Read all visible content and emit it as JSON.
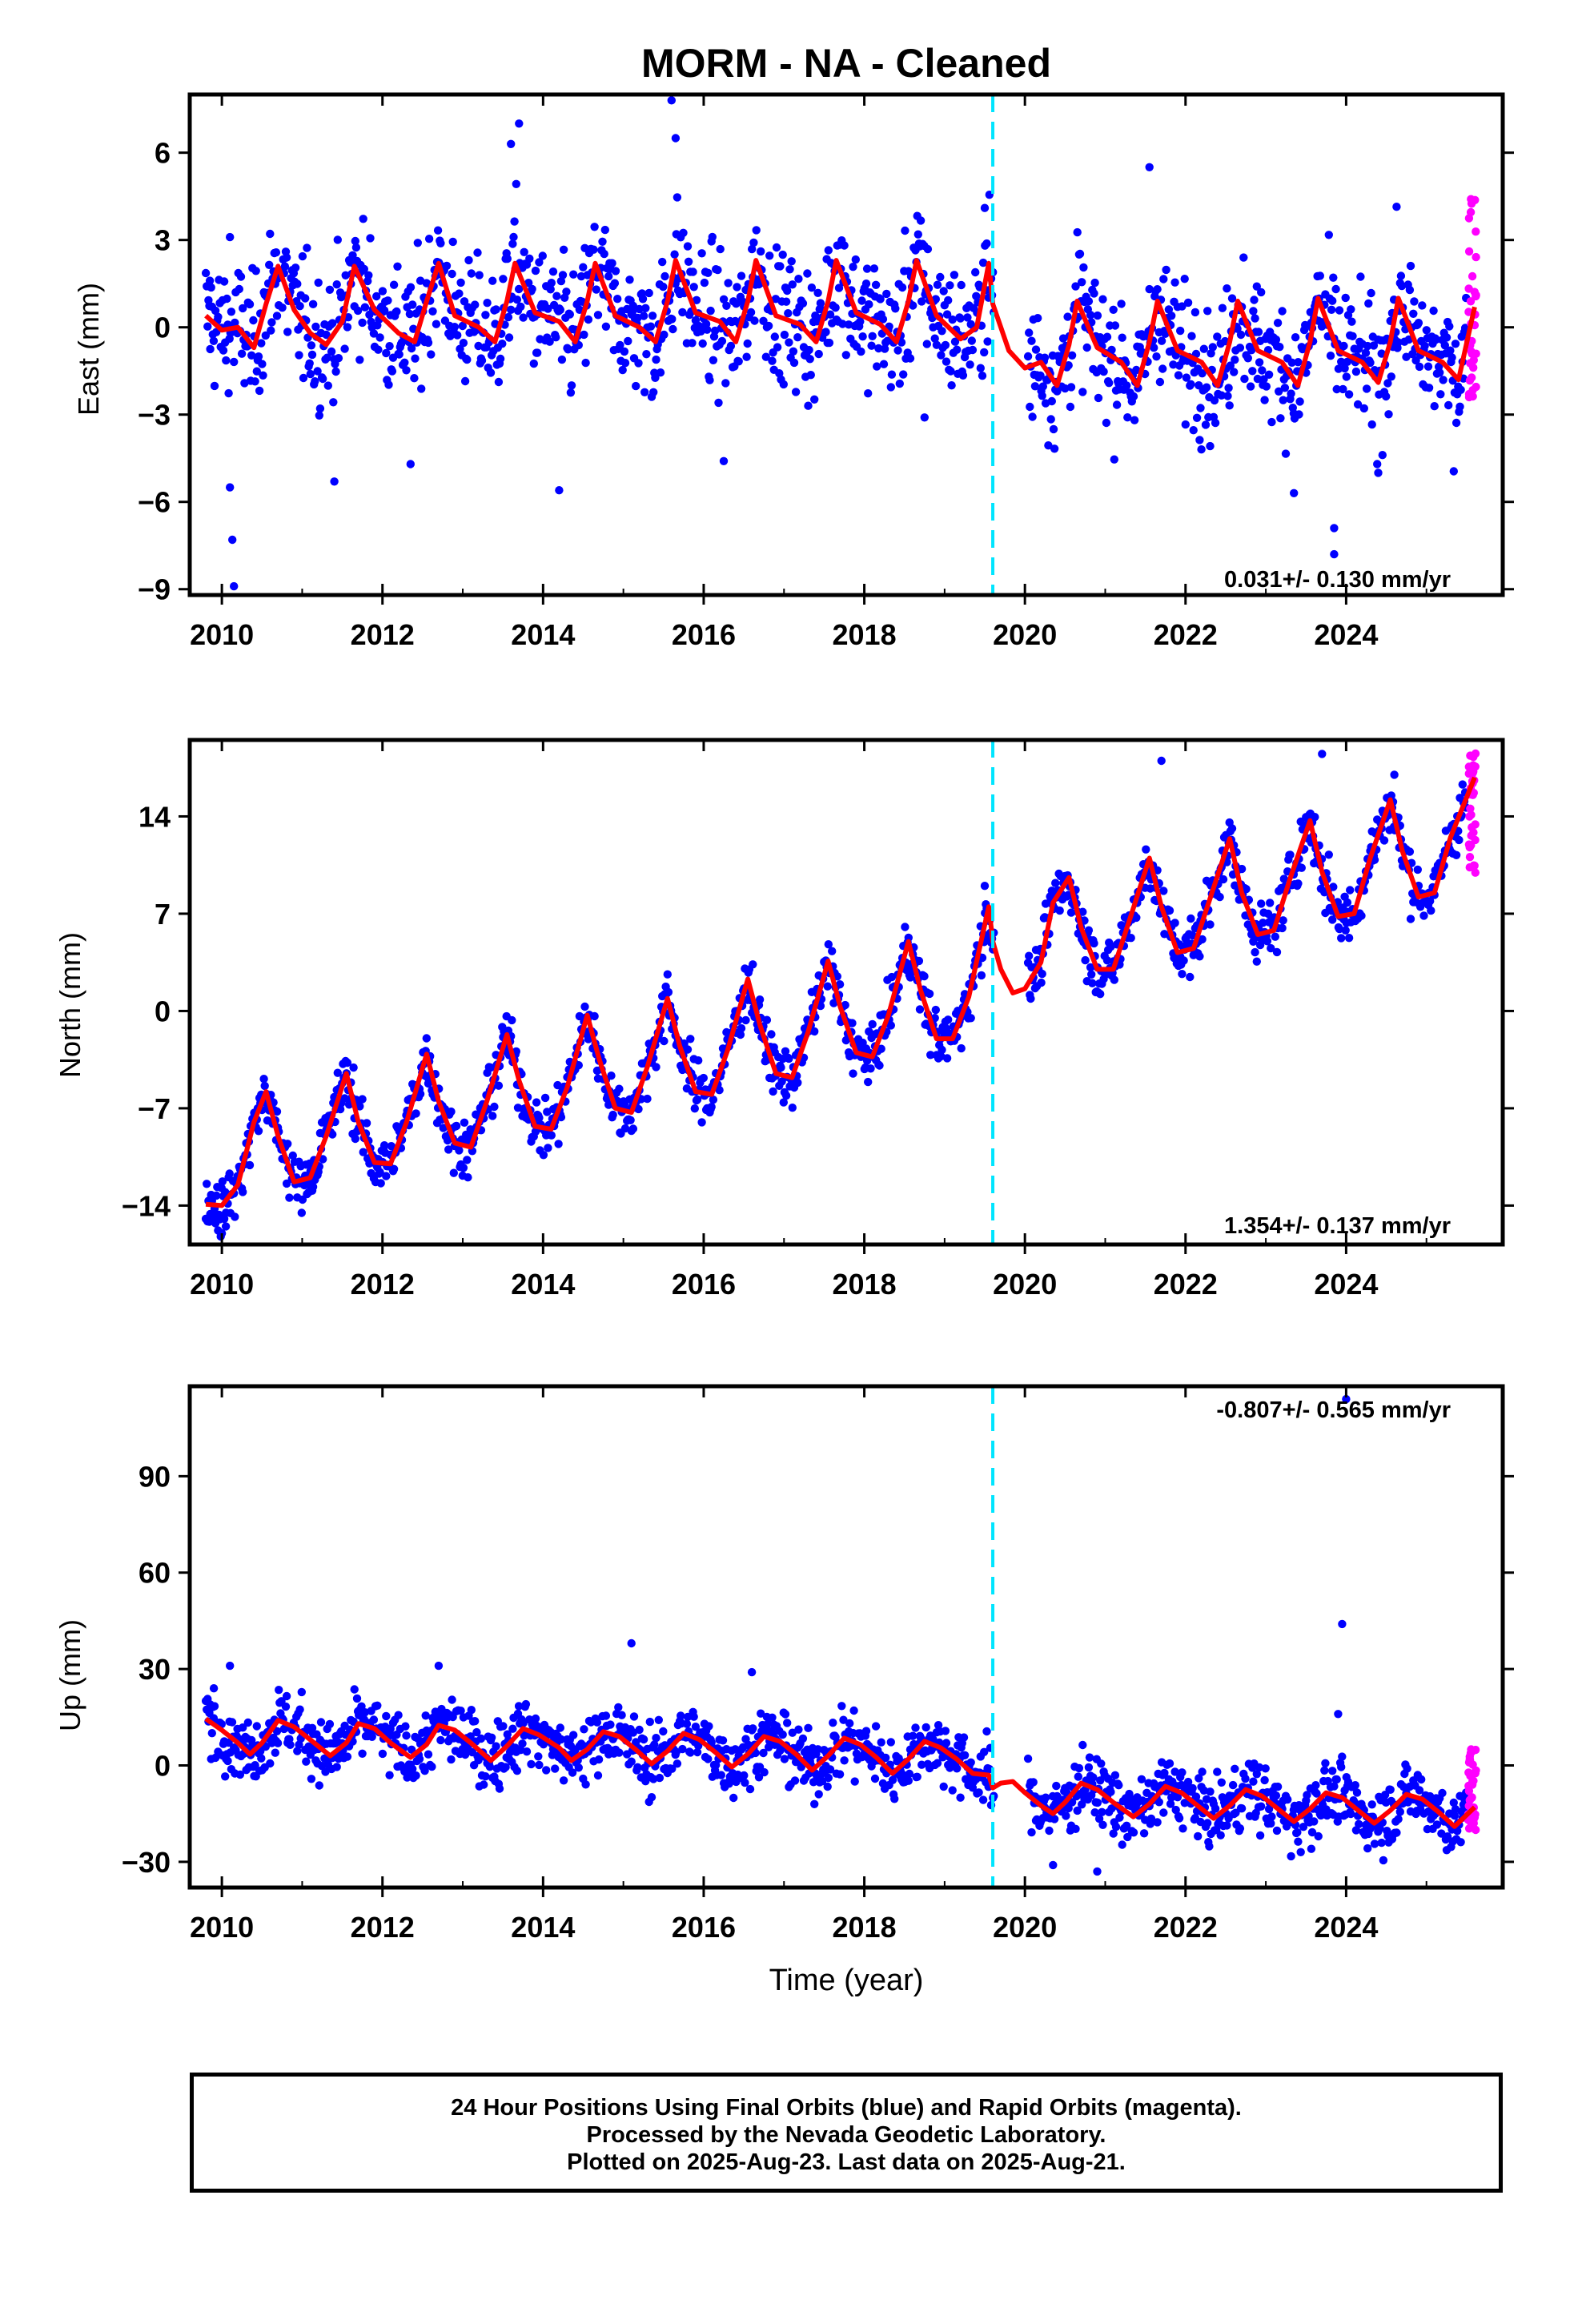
{
  "title": "MORM  - NA - Cleaned",
  "xlabel": "Time (year)",
  "colors": {
    "final_orbits": "#0000ff",
    "rapid_orbits": "#ff00ff",
    "model": "#ff0000",
    "event_line": "#00e5ff"
  },
  "footer": {
    "line1": "24 Hour Positions Using Final Orbits (blue) and Rapid Orbits (magenta).",
    "line2": "Processed by the Nevada Geodetic Laboratory.",
    "line3": "Plotted on 2025-Aug-23. Last data on 2025-Aug-21."
  },
  "chart_data": [
    {
      "type": "scatter",
      "component": "east",
      "ylabel": "East (mm)",
      "rate_label": "0.031+/- 0.130 mm/yr",
      "rate_label_position": "bottom-right",
      "xlim": [
        2009.6,
        2025.95
      ],
      "ylim": [
        -9.2,
        8.0
      ],
      "xticks": [
        2010,
        2012,
        2014,
        2016,
        2018,
        2020,
        2022,
        2024
      ],
      "yticks": [
        -9,
        -6,
        -3,
        0,
        3,
        6
      ],
      "event_line_x": 2019.6,
      "x_range": [
        2009.8,
        2025.6
      ],
      "rapid_start": 2025.5,
      "series": [
        {
          "name": "Final Orbits",
          "color": "blue",
          "description": "daily positions",
          "trend_slope_mm_per_yr": 0.031,
          "offset_before_event": 0.2,
          "offset_after_event": -1.0,
          "seasonal_amplitude": 1.2,
          "noise_sd": 1.1
        },
        {
          "name": "Rapid Orbits",
          "color": "magenta",
          "y_range": [
            -2.5,
            4.8
          ]
        }
      ],
      "model_curve_points": [
        [
          2009.8,
          0.4
        ],
        [
          2010.0,
          -0.1
        ],
        [
          2010.2,
          0.0
        ],
        [
          2010.4,
          -0.7
        ],
        [
          2010.55,
          0.8
        ],
        [
          2010.7,
          2.1
        ],
        [
          2010.9,
          0.6
        ],
        [
          2011.1,
          -0.2
        ],
        [
          2011.3,
          -0.6
        ],
        [
          2011.5,
          0.2
        ],
        [
          2011.65,
          2.1
        ],
        [
          2011.9,
          0.6
        ],
        [
          2012.2,
          -0.2
        ],
        [
          2012.4,
          -0.5
        ],
        [
          2012.55,
          0.9
        ],
        [
          2012.7,
          2.2
        ],
        [
          2012.9,
          0.4
        ],
        [
          2013.2,
          0.0
        ],
        [
          2013.4,
          -0.5
        ],
        [
          2013.55,
          0.9
        ],
        [
          2013.65,
          2.2
        ],
        [
          2013.9,
          0.5
        ],
        [
          2014.2,
          0.2
        ],
        [
          2014.4,
          -0.5
        ],
        [
          2014.55,
          0.9
        ],
        [
          2014.65,
          2.2
        ],
        [
          2014.9,
          0.4
        ],
        [
          2015.2,
          0.0
        ],
        [
          2015.4,
          -0.5
        ],
        [
          2015.55,
          0.9
        ],
        [
          2015.65,
          2.3
        ],
        [
          2015.9,
          0.5
        ],
        [
          2016.2,
          0.2
        ],
        [
          2016.4,
          -0.5
        ],
        [
          2016.55,
          0.9
        ],
        [
          2016.65,
          2.3
        ],
        [
          2016.9,
          0.4
        ],
        [
          2017.2,
          0.1
        ],
        [
          2017.4,
          -0.5
        ],
        [
          2017.55,
          0.9
        ],
        [
          2017.65,
          2.3
        ],
        [
          2017.9,
          0.5
        ],
        [
          2018.2,
          0.1
        ],
        [
          2018.4,
          -0.5
        ],
        [
          2018.55,
          0.9
        ],
        [
          2018.65,
          2.3
        ],
        [
          2018.9,
          0.4
        ],
        [
          2019.2,
          -0.4
        ],
        [
          2019.4,
          0.0
        ],
        [
          2019.55,
          2.2
        ],
        [
          2019.6,
          0.8
        ],
        [
          2019.8,
          -0.8
        ],
        [
          2020.0,
          -1.4
        ],
        [
          2020.2,
          -1.2
        ],
        [
          2020.4,
          -2.0
        ],
        [
          2020.55,
          -0.6
        ],
        [
          2020.65,
          0.9
        ],
        [
          2020.9,
          -0.7
        ],
        [
          2021.2,
          -1.2
        ],
        [
          2021.4,
          -2.0
        ],
        [
          2021.55,
          -0.5
        ],
        [
          2021.65,
          0.9
        ],
        [
          2021.9,
          -0.8
        ],
        [
          2022.2,
          -1.2
        ],
        [
          2022.4,
          -2.0
        ],
        [
          2022.55,
          -0.5
        ],
        [
          2022.65,
          0.9
        ],
        [
          2022.9,
          -0.8
        ],
        [
          2023.2,
          -1.2
        ],
        [
          2023.4,
          -2.0
        ],
        [
          2023.55,
          -0.5
        ],
        [
          2023.65,
          1.0
        ],
        [
          2023.9,
          -0.8
        ],
        [
          2024.2,
          -1.2
        ],
        [
          2024.4,
          -1.9
        ],
        [
          2024.55,
          -0.5
        ],
        [
          2024.65,
          1.0
        ],
        [
          2024.9,
          -0.8
        ],
        [
          2025.2,
          -1.2
        ],
        [
          2025.4,
          -1.8
        ],
        [
          2025.6,
          0.7
        ]
      ],
      "outliers": [
        [
          2009.85,
          1.6
        ],
        [
          2010.1,
          -5.5
        ],
        [
          2010.13,
          -7.3
        ],
        [
          2010.15,
          -8.9
        ],
        [
          2010.1,
          3.1
        ],
        [
          2011.4,
          -5.3
        ],
        [
          2012.35,
          -4.7
        ],
        [
          2013.6,
          6.3
        ],
        [
          2013.7,
          7.0
        ],
        [
          2014.2,
          -5.6
        ],
        [
          2015.6,
          7.8
        ],
        [
          2015.65,
          6.5
        ],
        [
          2016.25,
          -4.6
        ],
        [
          2018.75,
          -3.1
        ],
        [
          2019.5,
          4.1
        ],
        [
          2021.55,
          5.5
        ],
        [
          2023.35,
          -5.7
        ],
        [
          2023.85,
          -6.9
        ],
        [
          2023.85,
          -7.8
        ],
        [
          2024.4,
          -5.0
        ]
      ]
    },
    {
      "type": "scatter",
      "component": "north",
      "ylabel": "North (mm)",
      "rate_label": "1.354+/- 0.137 mm/yr",
      "rate_label_position": "bottom-right",
      "xlim": [
        2009.6,
        2025.95
      ],
      "ylim": [
        -16.8,
        19.5
      ],
      "xticks": [
        2010,
        2012,
        2014,
        2016,
        2018,
        2020,
        2022,
        2024
      ],
      "yticks": [
        -14,
        -7,
        0,
        7,
        14
      ],
      "event_line_x": 2019.6,
      "x_range": [
        2009.8,
        2025.6
      ],
      "rapid_start": 2025.5,
      "series": [
        {
          "name": "Final Orbits",
          "color": "blue",
          "description": "daily positions",
          "trend_slope_mm_per_yr": 1.354,
          "seasonal_amplitude": 4.0,
          "noise_sd": 1.0
        },
        {
          "name": "Rapid Orbits",
          "color": "magenta",
          "y_range": [
            9.8,
            18.8
          ]
        }
      ],
      "model_curve_points": [
        [
          2009.8,
          -13.9
        ],
        [
          2010.0,
          -14.0
        ],
        [
          2010.2,
          -12.5
        ],
        [
          2010.4,
          -8.0
        ],
        [
          2010.55,
          -5.8
        ],
        [
          2010.7,
          -9.0
        ],
        [
          2010.9,
          -12.3
        ],
        [
          2011.1,
          -12.0
        ],
        [
          2011.3,
          -9.0
        ],
        [
          2011.55,
          -4.5
        ],
        [
          2011.7,
          -8.0
        ],
        [
          2011.9,
          -10.9
        ],
        [
          2012.1,
          -11.0
        ],
        [
          2012.3,
          -8.0
        ],
        [
          2012.55,
          -3.1
        ],
        [
          2012.7,
          -6.5
        ],
        [
          2012.9,
          -9.5
        ],
        [
          2013.1,
          -9.8
        ],
        [
          2013.3,
          -6.5
        ],
        [
          2013.55,
          -1.7
        ],
        [
          2013.7,
          -5.0
        ],
        [
          2013.9,
          -8.3
        ],
        [
          2014.1,
          -8.5
        ],
        [
          2014.3,
          -5.5
        ],
        [
          2014.55,
          -0.3
        ],
        [
          2014.7,
          -3.5
        ],
        [
          2014.9,
          -7.0
        ],
        [
          2015.1,
          -7.3
        ],
        [
          2015.3,
          -4.0
        ],
        [
          2015.55,
          0.9
        ],
        [
          2015.7,
          -2.5
        ],
        [
          2015.9,
          -5.8
        ],
        [
          2016.1,
          -6.0
        ],
        [
          2016.3,
          -2.8
        ],
        [
          2016.55,
          2.3
        ],
        [
          2016.7,
          -1.0
        ],
        [
          2016.9,
          -4.5
        ],
        [
          2017.1,
          -4.8
        ],
        [
          2017.3,
          -1.5
        ],
        [
          2017.55,
          3.6
        ],
        [
          2017.7,
          0.3
        ],
        [
          2017.9,
          -3.0
        ],
        [
          2018.1,
          -3.3
        ],
        [
          2018.3,
          -0.3
        ],
        [
          2018.55,
          5.0
        ],
        [
          2018.7,
          1.5
        ],
        [
          2018.9,
          -2.0
        ],
        [
          2019.1,
          -2.0
        ],
        [
          2019.3,
          1.0
        ],
        [
          2019.5,
          6.2
        ],
        [
          2019.55,
          7.5
        ],
        [
          2019.6,
          5.0
        ],
        [
          2019.7,
          3.0
        ],
        [
          2019.85,
          1.3
        ],
        [
          2020.0,
          1.6
        ],
        [
          2020.2,
          3.5
        ],
        [
          2020.35,
          7.8
        ],
        [
          2020.55,
          9.6
        ],
        [
          2020.7,
          6.0
        ],
        [
          2020.9,
          3.0
        ],
        [
          2021.1,
          3.0
        ],
        [
          2021.3,
          6.5
        ],
        [
          2021.55,
          11.0
        ],
        [
          2021.7,
          7.5
        ],
        [
          2021.9,
          4.2
        ],
        [
          2022.1,
          4.5
        ],
        [
          2022.3,
          8.0
        ],
        [
          2022.55,
          12.4
        ],
        [
          2022.7,
          8.5
        ],
        [
          2022.9,
          5.5
        ],
        [
          2023.1,
          5.8
        ],
        [
          2023.3,
          9.5
        ],
        [
          2023.55,
          13.7
        ],
        [
          2023.7,
          10.0
        ],
        [
          2023.9,
          6.8
        ],
        [
          2024.1,
          7.0
        ],
        [
          2024.3,
          11.0
        ],
        [
          2024.55,
          15.2
        ],
        [
          2024.7,
          11.5
        ],
        [
          2024.9,
          8.2
        ],
        [
          2025.1,
          8.5
        ],
        [
          2025.3,
          12.5
        ],
        [
          2025.6,
          16.8
        ]
      ],
      "outliers": [
        [
          2010.0,
          -16.0
        ],
        [
          2010.05,
          -15.5
        ],
        [
          2021.7,
          18.0
        ],
        [
          2023.7,
          18.5
        ],
        [
          2024.6,
          17.0
        ],
        [
          2019.5,
          9.0
        ]
      ]
    },
    {
      "type": "scatter",
      "component": "up",
      "ylabel": "Up (mm)",
      "rate_label": "-0.807+/- 0.565 mm/yr",
      "rate_label_position": "top-right",
      "xlim": [
        2009.6,
        2025.95
      ],
      "ylim": [
        -38.0,
        118.0
      ],
      "xticks": [
        2010,
        2012,
        2014,
        2016,
        2018,
        2020,
        2022,
        2024
      ],
      "yticks": [
        -30,
        0,
        30,
        60,
        90
      ],
      "event_line_x": 2019.6,
      "x_range": [
        2009.8,
        2025.6
      ],
      "rapid_start": 2025.5,
      "series": [
        {
          "name": "Final Orbits",
          "color": "blue",
          "description": "daily positions",
          "trend_slope_mm_per_yr": -0.807,
          "seasonal_amplitude": 5.0,
          "noise_sd": 5.0
        },
        {
          "name": "Rapid Orbits",
          "color": "magenta",
          "y_range": [
            -22.0,
            5.0
          ]
        }
      ],
      "model_curve_points": [
        [
          2009.8,
          14.5
        ],
        [
          2010.0,
          11.0
        ],
        [
          2010.2,
          7.0
        ],
        [
          2010.35,
          3.5
        ],
        [
          2010.5,
          7.0
        ],
        [
          2010.7,
          14.0
        ],
        [
          2010.9,
          12.0
        ],
        [
          2011.1,
          8.0
        ],
        [
          2011.35,
          3.0
        ],
        [
          2011.55,
          7.0
        ],
        [
          2011.7,
          13.0
        ],
        [
          2011.9,
          11.5
        ],
        [
          2012.1,
          7.0
        ],
        [
          2012.35,
          2.5
        ],
        [
          2012.55,
          6.5
        ],
        [
          2012.7,
          12.5
        ],
        [
          2012.9,
          11.0
        ],
        [
          2013.1,
          7.0
        ],
        [
          2013.35,
          1.5
        ],
        [
          2013.55,
          6.0
        ],
        [
          2013.75,
          11.5
        ],
        [
          2013.95,
          9.5
        ],
        [
          2014.2,
          5.5
        ],
        [
          2014.35,
          1.5
        ],
        [
          2014.55,
          5.0
        ],
        [
          2014.75,
          10.5
        ],
        [
          2014.95,
          9.0
        ],
        [
          2015.15,
          5.0
        ],
        [
          2015.35,
          0.5
        ],
        [
          2015.55,
          4.5
        ],
        [
          2015.75,
          10.0
        ],
        [
          2015.95,
          8.0
        ],
        [
          2016.15,
          4.0
        ],
        [
          2016.35,
          -0.5
        ],
        [
          2016.55,
          3.5
        ],
        [
          2016.75,
          9.0
        ],
        [
          2016.95,
          7.5
        ],
        [
          2017.15,
          3.5
        ],
        [
          2017.35,
          -1.5
        ],
        [
          2017.55,
          3.0
        ],
        [
          2017.75,
          8.5
        ],
        [
          2017.95,
          6.5
        ],
        [
          2018.15,
          2.5
        ],
        [
          2018.35,
          -2.5
        ],
        [
          2018.55,
          2.0
        ],
        [
          2018.75,
          7.5
        ],
        [
          2018.95,
          5.5
        ],
        [
          2019.15,
          2.0
        ],
        [
          2019.35,
          -2.5
        ],
        [
          2019.55,
          -3.0
        ],
        [
          2019.6,
          -7.0
        ],
        [
          2019.7,
          -5.5
        ],
        [
          2019.85,
          -5.0
        ],
        [
          2020.0,
          -8.5
        ],
        [
          2020.2,
          -12.5
        ],
        [
          2020.35,
          -15.0
        ],
        [
          2020.5,
          -11.5
        ],
        [
          2020.7,
          -5.5
        ],
        [
          2020.9,
          -7.5
        ],
        [
          2021.1,
          -11.5
        ],
        [
          2021.35,
          -16.0
        ],
        [
          2021.55,
          -12.0
        ],
        [
          2021.75,
          -6.5
        ],
        [
          2021.95,
          -8.5
        ],
        [
          2022.15,
          -12.5
        ],
        [
          2022.35,
          -16.5
        ],
        [
          2022.55,
          -12.5
        ],
        [
          2022.75,
          -7.5
        ],
        [
          2022.95,
          -9.5
        ],
        [
          2023.15,
          -13.5
        ],
        [
          2023.35,
          -17.5
        ],
        [
          2023.55,
          -13.5
        ],
        [
          2023.75,
          -8.5
        ],
        [
          2023.95,
          -10.0
        ],
        [
          2024.15,
          -14.0
        ],
        [
          2024.35,
          -18.0
        ],
        [
          2024.55,
          -14.0
        ],
        [
          2024.75,
          -9.0
        ],
        [
          2024.95,
          -10.5
        ],
        [
          2025.15,
          -14.5
        ],
        [
          2025.35,
          -19.0
        ],
        [
          2025.6,
          -13.0
        ]
      ],
      "outliers": [
        [
          2015.1,
          38.0
        ],
        [
          2023.95,
          44.0
        ],
        [
          2024.0,
          114.0
        ],
        [
          2023.9,
          16.0
        ],
        [
          2009.9,
          24.0
        ],
        [
          2010.1,
          31.0
        ],
        [
          2012.7,
          31.0
        ],
        [
          2016.6,
          29.0
        ],
        [
          2020.9,
          -33.0
        ],
        [
          2020.35,
          -31.0
        ]
      ]
    }
  ]
}
